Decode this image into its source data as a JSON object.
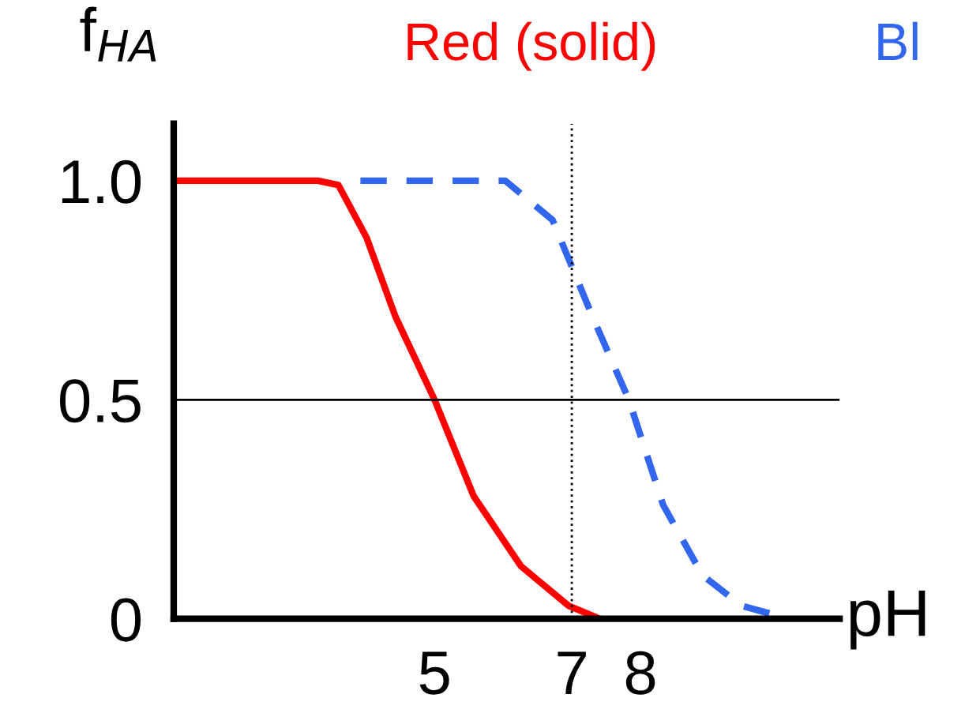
{
  "chart_data": {
    "type": "line",
    "xlabel": "pH",
    "ylabel": "f$_{HA}$",
    "xlim": [
      1.2,
      10.9
    ],
    "ylim": [
      0,
      1.13
    ],
    "xticks": [
      {
        "value": 5,
        "label": "5"
      },
      {
        "value": 7,
        "label": "7"
      },
      {
        "value": 8,
        "label": "8"
      }
    ],
    "yticks": [
      {
        "value": 0,
        "label": "0"
      },
      {
        "value": 0.5,
        "label": "0.5"
      },
      {
        "value": 1.0,
        "label": "1.0"
      }
    ],
    "grid": false,
    "legend": false,
    "series": [
      {
        "name": "Red (solid)",
        "color": "#ff0000",
        "line_style": "solid",
        "x": [
          1.2,
          2.5,
          3.3,
          3.6,
          4.01,
          4.43,
          5.0,
          5.57,
          6.26,
          6.95,
          7.41
        ],
        "values": [
          1.0,
          1.0,
          1.0,
          0.99,
          0.87,
          0.69,
          0.5,
          0.28,
          0.12,
          0.03,
          0.0
        ]
      },
      {
        "name": "Bl",
        "color": "#3366ee",
        "line_style": "dashed",
        "x": [
          3.92,
          5.0,
          6.03,
          6.72,
          7.3,
          7.83,
          8.33,
          8.9,
          9.47,
          10.16
        ],
        "values": [
          1.0,
          1.0,
          1.0,
          0.91,
          0.69,
          0.5,
          0.26,
          0.1,
          0.03,
          0.0
        ]
      }
    ],
    "ref_lines": [
      {
        "axis": "y",
        "value": 0.5,
        "color": "#000000",
        "line_style": "solid"
      },
      {
        "axis": "x",
        "value": 7,
        "color": "#000000",
        "line_style": "dotted"
      }
    ]
  }
}
